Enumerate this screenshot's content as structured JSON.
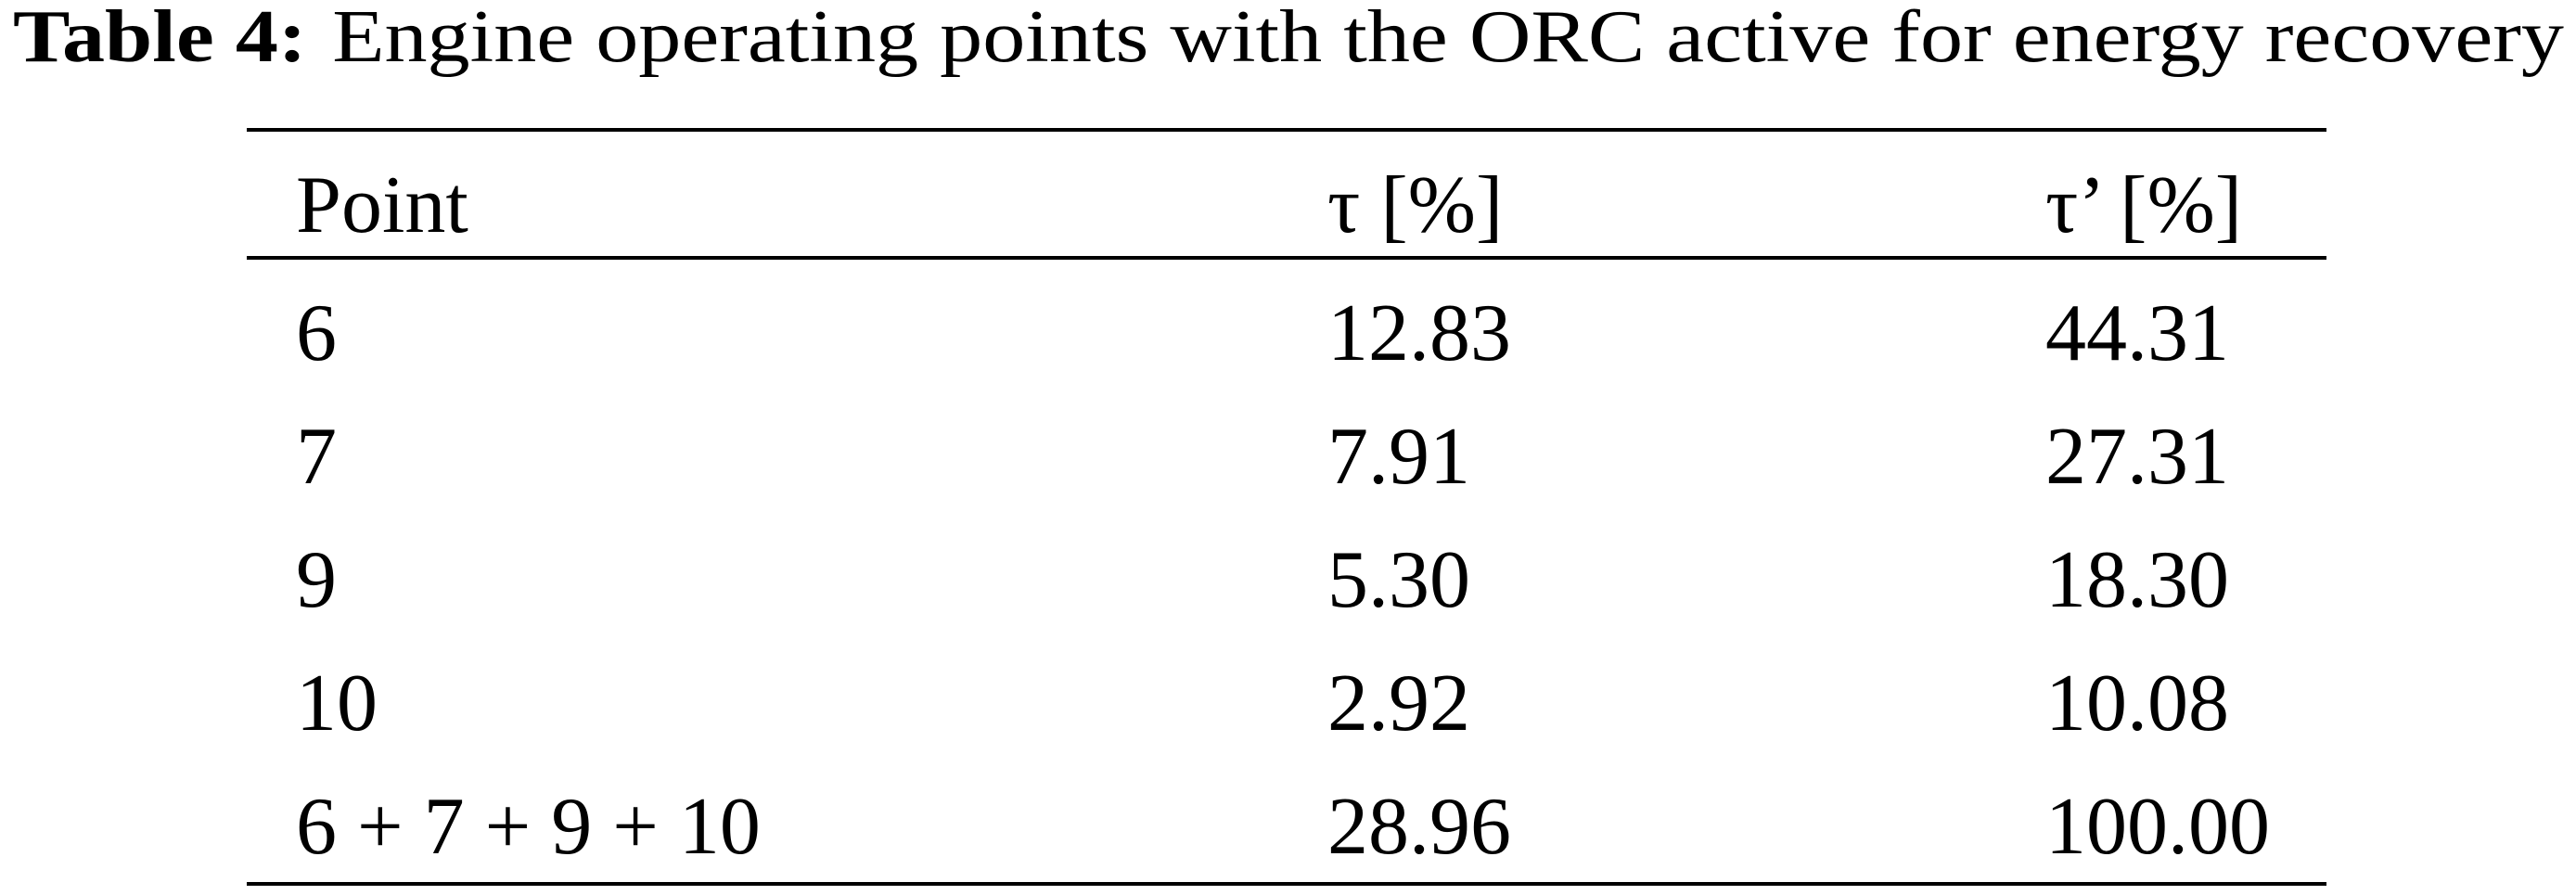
{
  "caption": {
    "label": "Table 4:",
    "title": "Engine operating points with the ORC active for energy recovery"
  },
  "table": {
    "header": [
      "Point",
      "τ [%]",
      "τ’ [%]"
    ],
    "rows": [
      [
        "6",
        "12.83",
        "44.31"
      ],
      [
        "7",
        "7.91",
        "27.31"
      ],
      [
        "9",
        "5.30",
        "18.30"
      ],
      [
        "10",
        "2.92",
        "10.08"
      ],
      [
        "6 + 7 + 9 + 10",
        "28.96",
        "100.00"
      ]
    ]
  }
}
